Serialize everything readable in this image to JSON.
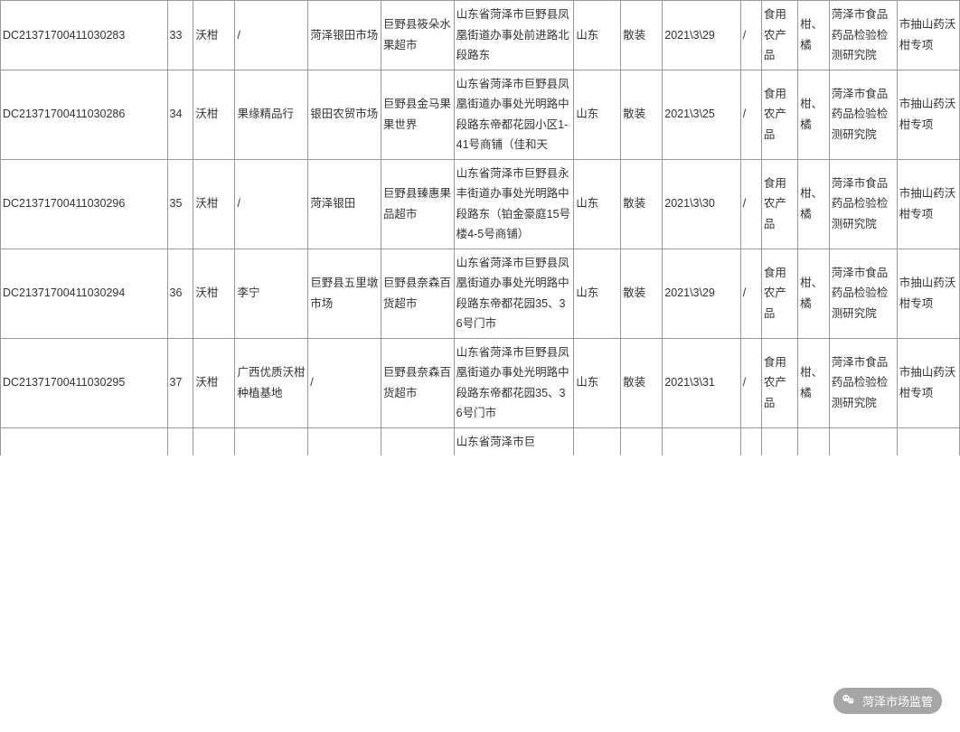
{
  "table": {
    "column_classes": [
      "c0",
      "c1",
      "c2",
      "c3",
      "c4",
      "c5",
      "c6",
      "c7",
      "c8",
      "c9",
      "c10",
      "c11",
      "c12",
      "c13",
      "c14"
    ],
    "rows": [
      {
        "cells": [
          "DC21371700411030283",
          "33",
          "沃柑",
          "/",
          "菏泽银田市场",
          "巨野县筱朵水果超市",
          "山东省菏泽市巨野县凤凰街道办事处前进路北段路东",
          "山东",
          "散装",
          "2021\\3\\29",
          "/",
          "食用农产品",
          "柑、橘",
          "菏泽市食品药品检验检测研究院",
          "市抽山药沃柑专项"
        ]
      },
      {
        "cells": [
          "DC21371700411030286",
          "34",
          "沃柑",
          "果缘精品行",
          "银田农贸市场",
          "巨野县金马果果世界",
          "山东省菏泽市巨野县凤凰街道办事处光明路中段路东帝都花园小区1-41号商铺（佳和天",
          "山东",
          "散装",
          "2021\\3\\25",
          "/",
          "食用农产品",
          "柑、橘",
          "菏泽市食品药品检验检测研究院",
          "市抽山药沃柑专项"
        ]
      },
      {
        "cells": [
          "DC21371700411030296",
          "35",
          "沃柑",
          "/",
          "菏泽银田",
          "巨野县臻惠果品超市",
          "山东省菏泽市巨野县永丰街道办事处光明路中段路东（铂金豪庭15号楼4-5号商铺）",
          "山东",
          "散装",
          "2021\\3\\30",
          "/",
          "食用农产品",
          "柑、橘",
          "菏泽市食品药品检验检测研究院",
          "市抽山药沃柑专项"
        ]
      },
      {
        "cells": [
          "DC21371700411030294",
          "36",
          "沃柑",
          "李宁",
          "巨野县五里墩市场",
          "巨野县奈森百货超市",
          "山东省菏泽市巨野县凤凰街道办事处光明路中段路东帝都花园35、36号门市",
          "山东",
          "散装",
          "2021\\3\\29",
          "/",
          "食用农产品",
          "柑、橘",
          "菏泽市食品药品检验检测研究院",
          "市抽山药沃柑专项"
        ]
      },
      {
        "cells": [
          "DC21371700411030295",
          "37",
          "沃柑",
          "广西优质沃柑种植基地",
          "/",
          "巨野县奈森百货超市",
          "山东省菏泽市巨野县凤凰街道办事处光明路中段路东帝都花园35、36号门市",
          "山东",
          "散装",
          "2021\\3\\31",
          "/",
          "食用农产品",
          "柑、橘",
          "菏泽市食品药品检验检测研究院",
          "市抽山药沃柑专项"
        ]
      }
    ],
    "partial_row": {
      "cells": [
        "",
        "",
        "",
        "",
        "",
        "",
        "山东省菏泽市巨",
        "",
        "",
        "",
        "",
        "",
        "",
        "",
        ""
      ]
    }
  },
  "watermark": {
    "label": "菏泽市场监管"
  }
}
